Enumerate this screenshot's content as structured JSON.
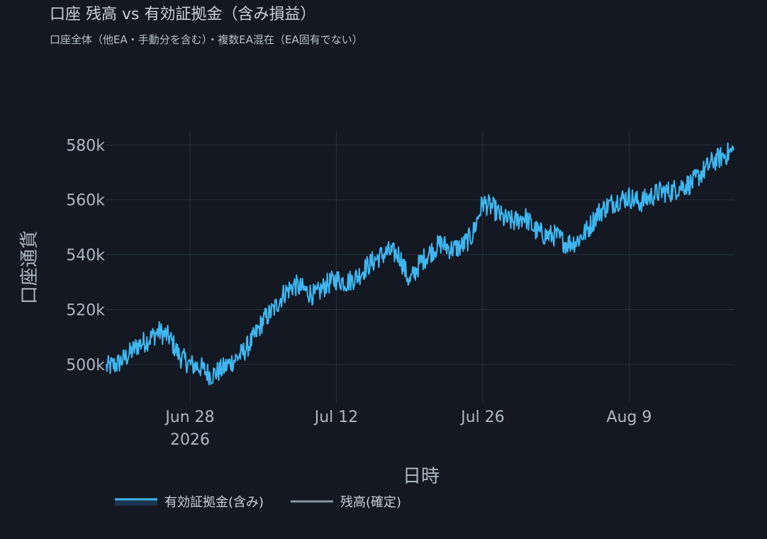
{
  "chart_data": {
    "type": "line",
    "title": "口座 残高 vs 有効証拠金（含み損益）",
    "subtitle": "口座全体（他EA・手動分を含む）・複数EA混在（EA固有でない）",
    "xlabel": "日時",
    "ylabel": "口座通貨",
    "x_range": [
      "2026-06-20",
      "2026-08-19"
    ],
    "ylim": [
      486000,
      585000
    ],
    "x_ticks": [
      {
        "date": "2026-06-28",
        "label": "Jun 28",
        "sublabel": "2026"
      },
      {
        "date": "2026-07-12",
        "label": "Jul 12",
        "sublabel": ""
      },
      {
        "date": "2026-07-26",
        "label": "Jul 26",
        "sublabel": ""
      },
      {
        "date": "2026-08-09",
        "label": "Aug 9",
        "sublabel": ""
      }
    ],
    "y_ticks": [
      {
        "value": 500000,
        "label": "500k"
      },
      {
        "value": 520000,
        "label": "520k"
      },
      {
        "value": 540000,
        "label": "540k"
      },
      {
        "value": 560000,
        "label": "560k"
      },
      {
        "value": 580000,
        "label": "580k"
      }
    ],
    "grid": true,
    "legend_position": "bottom-left",
    "series": [
      {
        "name": "有効証拠金(含み)",
        "color": "#3fb6f0",
        "x": [
          "2026-06-20",
          "2026-06-21",
          "2026-06-22",
          "2026-06-23",
          "2026-06-24",
          "2026-06-25",
          "2026-06-26",
          "2026-06-27",
          "2026-06-28",
          "2026-06-29",
          "2026-06-30",
          "2026-07-01",
          "2026-07-02",
          "2026-07-03",
          "2026-07-04",
          "2026-07-05",
          "2026-07-06",
          "2026-07-07",
          "2026-07-08",
          "2026-07-09",
          "2026-07-10",
          "2026-07-11",
          "2026-07-12",
          "2026-07-13",
          "2026-07-14",
          "2026-07-15",
          "2026-07-16",
          "2026-07-17",
          "2026-07-18",
          "2026-07-19",
          "2026-07-20",
          "2026-07-21",
          "2026-07-22",
          "2026-07-23",
          "2026-07-24",
          "2026-07-25",
          "2026-07-26",
          "2026-07-27",
          "2026-07-28",
          "2026-07-29",
          "2026-07-30",
          "2026-07-31",
          "2026-08-01",
          "2026-08-02",
          "2026-08-03",
          "2026-08-04",
          "2026-08-05",
          "2026-08-06",
          "2026-08-07",
          "2026-08-08",
          "2026-08-09",
          "2026-08-10",
          "2026-08-11",
          "2026-08-12",
          "2026-08-13",
          "2026-08-14",
          "2026-08-15",
          "2026-08-16",
          "2026-08-17",
          "2026-08-18",
          "2026-08-19"
        ],
        "y": [
          499000,
          500000,
          503000,
          507000,
          509000,
          512000,
          510000,
          503000,
          500000,
          499000,
          496000,
          498000,
          501000,
          504000,
          509000,
          516000,
          520000,
          526000,
          529000,
          527000,
          525000,
          529000,
          531000,
          530000,
          532000,
          536000,
          539000,
          541000,
          540000,
          530000,
          537000,
          541000,
          544000,
          542000,
          543000,
          547000,
          559000,
          557000,
          553000,
          552000,
          554000,
          549000,
          547000,
          547000,
          544000,
          545000,
          549000,
          555000,
          558000,
          560000,
          561000,
          559000,
          561000,
          563000,
          563000,
          565000,
          566000,
          570000,
          574000,
          576000,
          578000
        ]
      },
      {
        "name": "残高(確定)",
        "color": "#8b95a6",
        "x": [],
        "y": []
      }
    ]
  }
}
